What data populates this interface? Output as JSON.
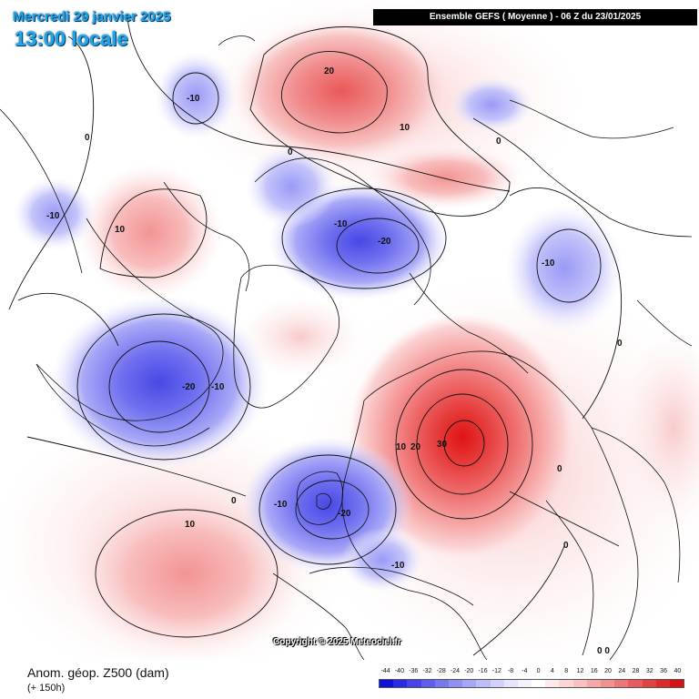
{
  "header": {
    "date_line": "Mercredi 29 janvier 2025",
    "time_line": "13:00 locale",
    "model_banner": "Ensemble GEFS  ( Moyenne )  -  06 Z du 23/01/2025"
  },
  "footer": {
    "title": "Anom. géop. Z500 (dam)",
    "lead_time": "(+ 150h)",
    "copyright": "Copyright © 2025 Meteociel.fr"
  },
  "legend": {
    "ticks": [
      "-44",
      "-40",
      "-36",
      "-32",
      "-28",
      "-24",
      "-20",
      "-16",
      "-12",
      "-8",
      "-4",
      "0",
      "4",
      "8",
      "12",
      "16",
      "20",
      "24",
      "28",
      "32",
      "36",
      "40"
    ],
    "colors": [
      "#1010dd",
      "#2a2ae4",
      "#4444ea",
      "#5e5eee",
      "#7777f2",
      "#8f8ff5",
      "#a6a6f8",
      "#bcbcfa",
      "#d1d1fc",
      "#e4e4fd",
      "#f3f3fe",
      "#ffffff",
      "#fdeaea",
      "#fbd6d6",
      "#f9c0c0",
      "#f6a8a8",
      "#f39090",
      "#ef7676",
      "#ea5c5c",
      "#e44242",
      "#de2a2a",
      "#d81212"
    ]
  },
  "map": {
    "anomalies": [
      {
        "id": "russia-high",
        "sign": "positive",
        "peak": 30,
        "labels": [
          "10",
          "20",
          "30"
        ]
      },
      {
        "id": "arctic-siberia-high",
        "sign": "positive",
        "peak": 20,
        "labels": [
          "20",
          "10"
        ]
      },
      {
        "id": "alaska-high",
        "sign": "positive",
        "peak": 10,
        "labels": [
          "10"
        ]
      },
      {
        "id": "north-atlantic-high",
        "sign": "positive",
        "peak": 10,
        "labels": [
          "10"
        ]
      },
      {
        "id": "north-america-low",
        "sign": "negative",
        "peak": -20,
        "labels": [
          "-20",
          "-10"
        ]
      },
      {
        "id": "west-europe-low",
        "sign": "negative",
        "peak": -20,
        "labels": [
          "-10",
          "-20",
          "-10"
        ]
      },
      {
        "id": "north-pacific-low",
        "sign": "negative",
        "peak": -20,
        "labels": [
          "-10",
          "-20"
        ]
      },
      {
        "id": "arctic-pacific-low",
        "sign": "negative",
        "peak": -10,
        "labels": [
          "-10"
        ]
      },
      {
        "id": "kamchatka-low",
        "sign": "negative",
        "peak": -10,
        "labels": [
          "-10"
        ]
      },
      {
        "id": "siberia-low",
        "sign": "negative",
        "peak": -10,
        "labels": [
          "-10"
        ]
      },
      {
        "id": "east-asia-low",
        "sign": "negative",
        "peak": -10,
        "labels": [
          "-10"
        ]
      }
    ],
    "zero_labels": [
      "0",
      "0",
      "0",
      "0",
      "0",
      "0",
      "0",
      "0 0"
    ],
    "colors": {
      "ocean": "#ffffff",
      "coastline": "#111111",
      "contour": "#111111"
    }
  }
}
